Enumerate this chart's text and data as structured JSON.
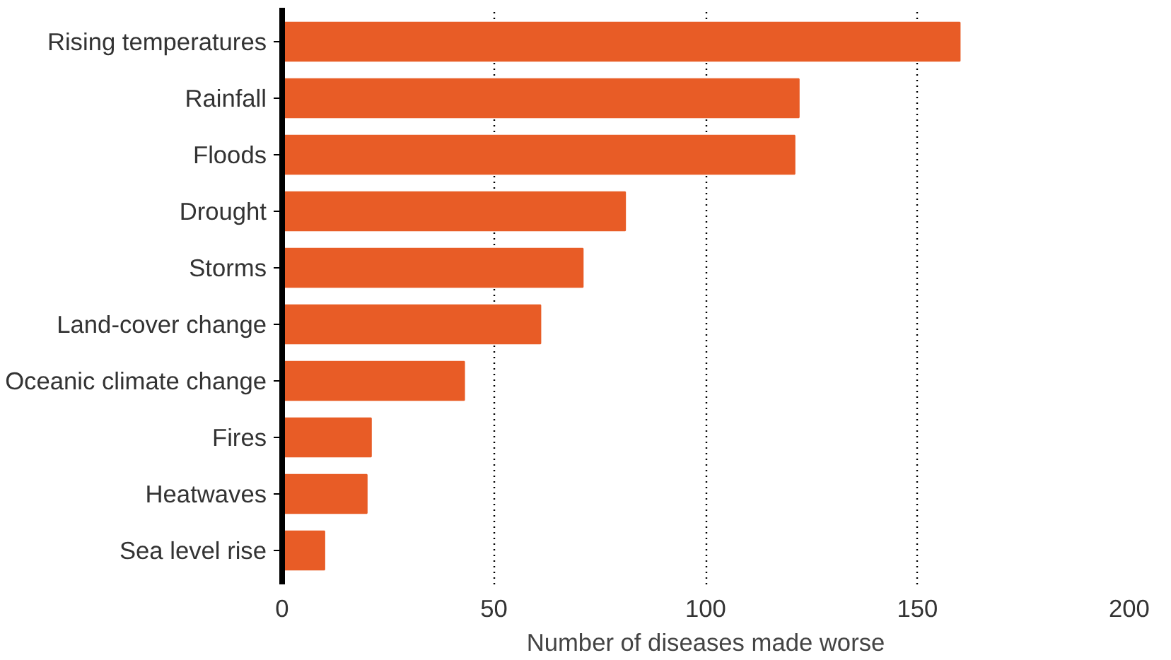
{
  "chart_data": {
    "type": "bar",
    "orientation": "horizontal",
    "xlabel": "Number of diseases made worse",
    "categories": [
      "Rising temperatures",
      "Rainfall",
      "Floods",
      "Drought",
      "Storms",
      "Land-cover change",
      "Oceanic climate change",
      "Fires",
      "Heatwaves",
      "Sea level rise"
    ],
    "values": [
      160,
      122,
      121,
      81,
      71,
      61,
      43,
      21,
      20,
      10
    ],
    "color": "#e85c26",
    "xlim": [
      0,
      200
    ],
    "xticks": [
      0,
      50,
      100,
      150,
      200
    ],
    "grid": "x"
  }
}
